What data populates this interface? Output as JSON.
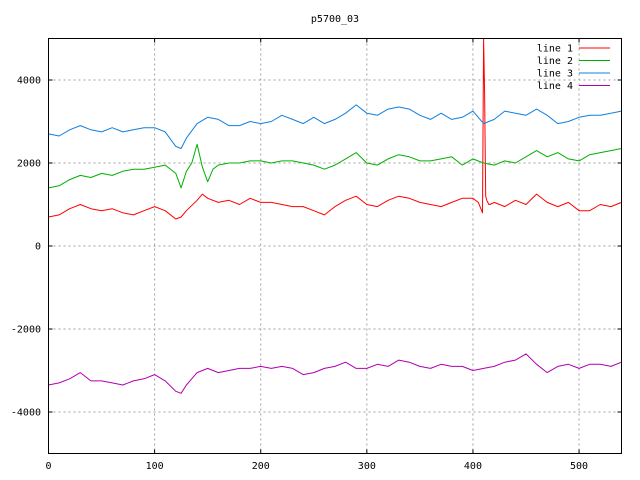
{
  "chart_data": {
    "type": "line",
    "title": "p5700_03",
    "xlabel": "",
    "ylabel": "",
    "xlim": [
      0,
      540
    ],
    "ylim": [
      -5000,
      5000
    ],
    "x_ticks": [
      0,
      100,
      200,
      300,
      400,
      500
    ],
    "y_ticks": [
      -4000,
      -2000,
      0,
      2000,
      4000
    ],
    "grid": true,
    "legend_position": "top-right",
    "series": [
      {
        "name": "line 1",
        "color": "#ff0000",
        "x": [
          0,
          10,
          20,
          30,
          40,
          50,
          60,
          70,
          80,
          90,
          100,
          110,
          120,
          125,
          130,
          140,
          145,
          150,
          160,
          170,
          180,
          190,
          200,
          210,
          220,
          230,
          240,
          250,
          260,
          270,
          280,
          290,
          300,
          310,
          320,
          330,
          340,
          350,
          360,
          370,
          380,
          390,
          400,
          405,
          409,
          410,
          411,
          412,
          413,
          414,
          415,
          416,
          420,
          430,
          440,
          450,
          460,
          470,
          480,
          490,
          500,
          510,
          520,
          530,
          540
        ],
        "values": [
          700,
          750,
          900,
          1000,
          900,
          850,
          900,
          800,
          750,
          850,
          950,
          850,
          650,
          700,
          850,
          1100,
          1250,
          1150,
          1050,
          1100,
          1000,
          1150,
          1050,
          1050,
          1000,
          950,
          950,
          850,
          750,
          950,
          1100,
          1200,
          1000,
          950,
          1100,
          1200,
          1150,
          1050,
          1000,
          950,
          1050,
          1150,
          1150,
          1050,
          800,
          5000,
          3700,
          1200,
          1100,
          1050,
          1000,
          1000,
          1050,
          950,
          1100,
          1000,
          1250,
          1050,
          950,
          1050,
          850,
          850,
          1000,
          950,
          1050
        ]
      },
      {
        "name": "line 2",
        "color": "#00b000",
        "x": [
          0,
          10,
          20,
          30,
          40,
          50,
          60,
          70,
          80,
          90,
          100,
          110,
          120,
          125,
          130,
          135,
          140,
          145,
          150,
          155,
          160,
          170,
          180,
          190,
          200,
          210,
          220,
          230,
          240,
          250,
          260,
          270,
          280,
          290,
          300,
          310,
          320,
          330,
          340,
          350,
          360,
          370,
          380,
          390,
          400,
          410,
          420,
          430,
          440,
          450,
          460,
          470,
          480,
          490,
          500,
          510,
          520,
          530,
          540
        ],
        "values": [
          1400,
          1450,
          1600,
          1700,
          1650,
          1750,
          1700,
          1800,
          1850,
          1850,
          1900,
          1950,
          1750,
          1400,
          1800,
          2000,
          2450,
          1900,
          1550,
          1850,
          1950,
          2000,
          2000,
          2050,
          2050,
          2000,
          2050,
          2050,
          2000,
          1950,
          1850,
          1950,
          2100,
          2250,
          2000,
          1950,
          2100,
          2200,
          2150,
          2050,
          2050,
          2100,
          2150,
          1950,
          2100,
          2000,
          1950,
          2050,
          2000,
          2150,
          2300,
          2150,
          2250,
          2100,
          2050,
          2200,
          2250,
          2300,
          2350
        ]
      },
      {
        "name": "line 3",
        "color": "#1080e0",
        "x": [
          0,
          10,
          20,
          30,
          40,
          50,
          60,
          70,
          80,
          90,
          100,
          110,
          120,
          125,
          130,
          140,
          150,
          160,
          170,
          180,
          190,
          200,
          210,
          220,
          230,
          240,
          250,
          260,
          270,
          280,
          290,
          300,
          310,
          320,
          330,
          340,
          350,
          360,
          370,
          380,
          390,
          400,
          410,
          420,
          430,
          440,
          450,
          460,
          470,
          480,
          490,
          500,
          510,
          520,
          530,
          540
        ],
        "values": [
          2700,
          2650,
          2800,
          2900,
          2800,
          2750,
          2850,
          2750,
          2800,
          2850,
          2850,
          2750,
          2400,
          2350,
          2600,
          2950,
          3100,
          3050,
          2900,
          2900,
          3000,
          2950,
          3000,
          3150,
          3050,
          2950,
          3100,
          2950,
          3050,
          3200,
          3400,
          3200,
          3150,
          3300,
          3350,
          3300,
          3150,
          3050,
          3200,
          3050,
          3100,
          3250,
          2950,
          3050,
          3250,
          3200,
          3150,
          3300,
          3150,
          2950,
          3000,
          3100,
          3150,
          3150,
          3200,
          3250
        ]
      },
      {
        "name": "line 4",
        "color": "#b000b0",
        "x": [
          0,
          10,
          20,
          30,
          40,
          50,
          60,
          70,
          80,
          90,
          100,
          110,
          120,
          125,
          130,
          140,
          150,
          160,
          170,
          180,
          190,
          200,
          210,
          220,
          230,
          240,
          250,
          260,
          270,
          280,
          290,
          300,
          310,
          320,
          330,
          340,
          350,
          360,
          370,
          380,
          390,
          400,
          410,
          420,
          430,
          440,
          450,
          460,
          470,
          480,
          490,
          500,
          510,
          520,
          530,
          540
        ],
        "values": [
          -3350,
          -3300,
          -3200,
          -3050,
          -3250,
          -3250,
          -3300,
          -3350,
          -3250,
          -3200,
          -3100,
          -3250,
          -3500,
          -3550,
          -3350,
          -3050,
          -2950,
          -3050,
          -3000,
          -2950,
          -2950,
          -2900,
          -2950,
          -2900,
          -2950,
          -3100,
          -3050,
          -2950,
          -2900,
          -2800,
          -2950,
          -2950,
          -2850,
          -2900,
          -2750,
          -2800,
          -2900,
          -2950,
          -2850,
          -2900,
          -2900,
          -3000,
          -2950,
          -2900,
          -2800,
          -2750,
          -2600,
          -2850,
          -3050,
          -2900,
          -2850,
          -2950,
          -2850,
          -2850,
          -2900,
          -2800
        ]
      }
    ]
  }
}
